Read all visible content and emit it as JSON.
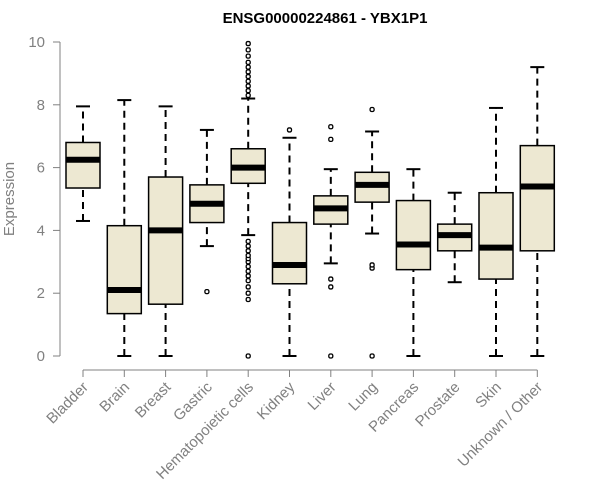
{
  "chart_data": {
    "type": "boxplot",
    "title": "ENSG00000224861 - YBX1P1",
    "xlabel": "",
    "ylabel": "Expression",
    "ylim": [
      0,
      10
    ],
    "yticks": [
      0,
      2,
      4,
      6,
      8,
      10
    ],
    "grid": false,
    "colors": {
      "box_fill": "#ede8d2",
      "box_stroke": "#000000",
      "axis": "#808080",
      "label": "#808080"
    },
    "categories": [
      "Bladder",
      "Brain",
      "Breast",
      "Gastric",
      "Hematopoietic cells",
      "Kidney",
      "Liver",
      "Lung",
      "Pancreas",
      "Prostate",
      "Skin",
      "Unknown / Other"
    ],
    "boxes": [
      {
        "category": "Bladder",
        "whisker_low": 4.3,
        "q1": 5.35,
        "median": 6.25,
        "q3": 6.8,
        "whisker_high": 7.95,
        "outliers": []
      },
      {
        "category": "Brain",
        "whisker_low": 0.0,
        "q1": 1.35,
        "median": 2.1,
        "q3": 4.15,
        "whisker_high": 8.15,
        "outliers": []
      },
      {
        "category": "Breast",
        "whisker_low": 0.0,
        "q1": 1.65,
        "median": 4.0,
        "q3": 5.7,
        "whisker_high": 7.95,
        "outliers": []
      },
      {
        "category": "Gastric",
        "whisker_low": 3.5,
        "q1": 4.25,
        "median": 4.85,
        "q3": 5.45,
        "whisker_high": 7.2,
        "outliers": [
          2.05
        ]
      },
      {
        "category": "Hematopoietic cells",
        "whisker_low": 3.85,
        "q1": 5.5,
        "median": 6.0,
        "q3": 6.6,
        "whisker_high": 8.2,
        "outliers": [
          0.0,
          1.8,
          2.0,
          2.2,
          2.4,
          2.55,
          2.7,
          2.85,
          3.0,
          3.1,
          3.2,
          3.35,
          3.5,
          3.65,
          8.3,
          8.45,
          8.6,
          8.75,
          8.9,
          9.05,
          9.2,
          9.35,
          9.55,
          9.75,
          9.95
        ]
      },
      {
        "category": "Kidney",
        "whisker_low": 0.0,
        "q1": 2.3,
        "median": 2.9,
        "q3": 4.25,
        "whisker_high": 6.95,
        "outliers": [
          7.2
        ]
      },
      {
        "category": "Liver",
        "whisker_low": 2.95,
        "q1": 4.2,
        "median": 4.7,
        "q3": 5.1,
        "whisker_high": 5.95,
        "outliers": [
          0.0,
          2.2,
          2.45,
          6.9,
          7.3
        ]
      },
      {
        "category": "Lung",
        "whisker_low": 3.9,
        "q1": 4.9,
        "median": 5.45,
        "q3": 5.85,
        "whisker_high": 7.15,
        "outliers": [
          0.0,
          2.8,
          2.9,
          7.85
        ]
      },
      {
        "category": "Pancreas",
        "whisker_low": 0.0,
        "q1": 2.75,
        "median": 3.55,
        "q3": 4.95,
        "whisker_high": 5.95,
        "outliers": []
      },
      {
        "category": "Prostate",
        "whisker_low": 2.35,
        "q1": 3.35,
        "median": 3.85,
        "q3": 4.2,
        "whisker_high": 5.2,
        "outliers": []
      },
      {
        "category": "Skin",
        "whisker_low": 0.0,
        "q1": 2.45,
        "median": 3.45,
        "q3": 5.2,
        "whisker_high": 7.9,
        "outliers": []
      },
      {
        "category": "Unknown / Other",
        "whisker_low": 0.0,
        "q1": 3.35,
        "median": 5.4,
        "q3": 6.7,
        "whisker_high": 9.2,
        "outliers": []
      }
    ]
  }
}
